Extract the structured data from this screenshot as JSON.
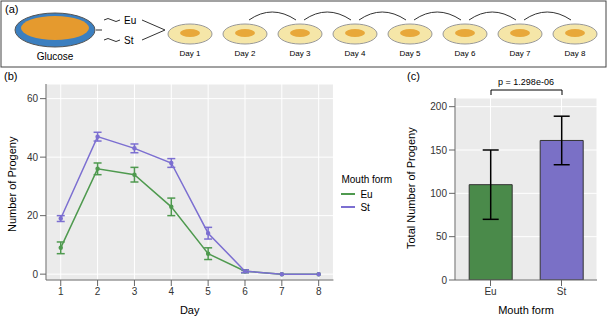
{
  "panel_a": {
    "panel_label": "(a)",
    "plate_label": "Glucose",
    "strains": [
      "Eu",
      "St"
    ],
    "days": [
      "Day 1",
      "Day 2",
      "Day 3",
      "Day 4",
      "Day 5",
      "Day 6",
      "Day 7",
      "Day 8"
    ]
  },
  "chart_data": [
    {
      "type": "line",
      "panel_label": "(b)",
      "x_label": "Day",
      "y_label": "Number of Progeny",
      "x": [
        1,
        2,
        3,
        4,
        5,
        6,
        7,
        8
      ],
      "series": [
        {
          "name": "Eu",
          "color": "#4f9a4f",
          "values": [
            9,
            36,
            34,
            23,
            7,
            1,
            0,
            0
          ],
          "errors": [
            2,
            2,
            2.5,
            3,
            2,
            0.5,
            0,
            0
          ]
        },
        {
          "name": "St",
          "color": "#7c6fd1",
          "values": [
            19,
            47,
            43,
            38,
            14,
            1,
            0,
            0
          ],
          "errors": [
            1,
            1.5,
            1.5,
            1.5,
            2,
            0.5,
            0,
            0
          ]
        }
      ],
      "xlim": [
        0.6,
        8.4
      ],
      "xticks": [
        1,
        2,
        3,
        4,
        5,
        6,
        7,
        8
      ],
      "ylim": [
        -2,
        65
      ],
      "yticks": [
        0,
        20,
        40,
        60
      ],
      "grid": true,
      "legend": "right",
      "legend_title": "Mouth form",
      "marker": "circle"
    },
    {
      "type": "bar",
      "panel_label": "(c)",
      "x_label": "Mouth form",
      "y_label": "Total Number of Progeny",
      "categories": [
        "Eu",
        "St"
      ],
      "values": [
        110,
        161
      ],
      "errors": [
        40,
        28
      ],
      "colors": [
        "#4a8a4a",
        "#7a70c6"
      ],
      "ylim": [
        0,
        210
      ],
      "yticks": [
        0,
        50,
        100,
        150,
        200
      ],
      "grid": true,
      "annotation": "p = 1.298e-06"
    }
  ]
}
